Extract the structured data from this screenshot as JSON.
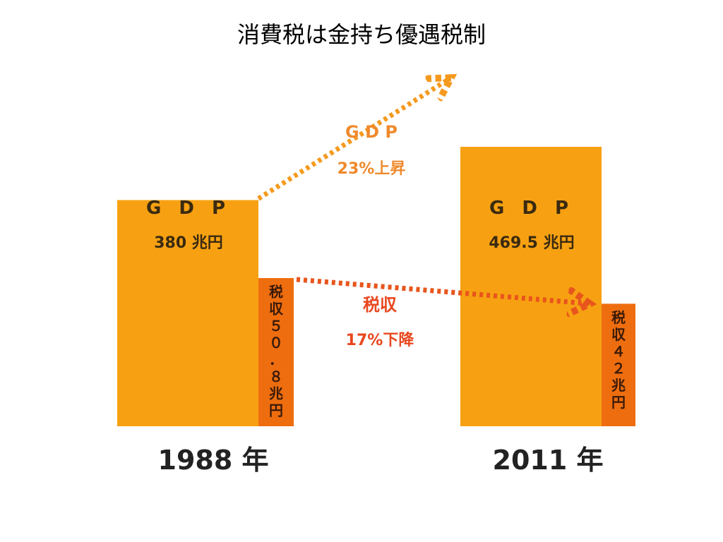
{
  "title": "消費税は金持ち優遇税制",
  "chart_data": {
    "type": "bar",
    "categories": [
      "1988 年",
      "2011 年"
    ],
    "series": [
      {
        "name": "GDP",
        "values": [
          380,
          469.5
        ],
        "labels": [
          "380 兆円",
          "469.5 兆円"
        ]
      },
      {
        "name": "税収",
        "values": [
          50.8,
          42
        ],
        "labels": [
          "５０．８兆円",
          "４２兆円"
        ]
      }
    ],
    "unit": "兆円",
    "annotations": [
      {
        "line1": "G D P",
        "line2": "23%上昇"
      },
      {
        "line1": "税収",
        "line2": "17%下降"
      }
    ],
    "colors": {
      "gdp": "#f7a112",
      "tax": "#ee6d0f",
      "gdp_arrow": "#f59a1e",
      "tax_arrow": "#e8551c",
      "gdp_text": "#3a2a10",
      "tax_text": "#3a1a08",
      "annot1": "#ef8a2c",
      "annot2": "#e8471e"
    }
  }
}
